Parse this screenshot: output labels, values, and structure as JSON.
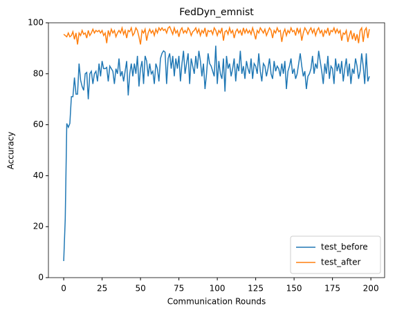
{
  "chart_data": {
    "type": "line",
    "title": "FedDyn_emnist",
    "xlabel": "Communication Rounds",
    "ylabel": "Accuracy",
    "x": [
      0,
      1,
      2,
      3,
      4,
      5,
      6,
      7,
      8,
      9,
      10,
      11,
      12,
      13,
      14,
      15,
      16,
      17,
      18,
      19,
      20,
      21,
      22,
      23,
      24,
      25,
      26,
      27,
      28,
      29,
      30,
      31,
      32,
      33,
      34,
      35,
      36,
      37,
      38,
      39,
      40,
      41,
      42,
      43,
      44,
      45,
      46,
      47,
      48,
      49,
      50,
      51,
      52,
      53,
      54,
      55,
      56,
      57,
      58,
      59,
      60,
      61,
      62,
      63,
      64,
      65,
      66,
      67,
      68,
      69,
      70,
      71,
      72,
      73,
      74,
      75,
      76,
      77,
      78,
      79,
      80,
      81,
      82,
      83,
      84,
      85,
      86,
      87,
      88,
      89,
      90,
      91,
      92,
      93,
      94,
      95,
      96,
      97,
      98,
      99,
      100,
      101,
      102,
      103,
      104,
      105,
      106,
      107,
      108,
      109,
      110,
      111,
      112,
      113,
      114,
      115,
      116,
      117,
      118,
      119,
      120,
      121,
      122,
      123,
      124,
      125,
      126,
      127,
      128,
      129,
      130,
      131,
      132,
      133,
      134,
      135,
      136,
      137,
      138,
      139,
      140,
      141,
      142,
      143,
      144,
      145,
      146,
      147,
      148,
      149,
      150,
      151,
      152,
      153,
      154,
      155,
      156,
      157,
      158,
      159,
      160,
      161,
      162,
      163,
      164,
      165,
      166,
      167,
      168,
      169,
      170,
      171,
      172,
      173,
      174,
      175,
      176,
      177,
      178,
      179,
      180,
      181,
      182,
      183,
      184,
      185,
      186,
      187,
      188,
      189,
      190,
      191,
      192,
      193,
      194,
      195,
      196,
      197,
      198,
      199
    ],
    "series": [
      {
        "name": "test_before",
        "color": "#1f77b4",
        "values": [
          6.5,
          23,
          60.5,
          59,
          60.5,
          71,
          71,
          78.5,
          72,
          72,
          84,
          77.5,
          75,
          73.5,
          80,
          80.5,
          70,
          80,
          81,
          76,
          80,
          81,
          77,
          84,
          79,
          85,
          82,
          82,
          82.5,
          77,
          83,
          82,
          81,
          76,
          82,
          80,
          86,
          79,
          81,
          77,
          81,
          85,
          71.5,
          80,
          84,
          79,
          84,
          80,
          87,
          75,
          82,
          85,
          76,
          87,
          85,
          79,
          84,
          80,
          81,
          76,
          84,
          82,
          77,
          86,
          88,
          89,
          88.5,
          76,
          86,
          88,
          82,
          87,
          79,
          86,
          82,
          87,
          77,
          84,
          89,
          80,
          84,
          88,
          76,
          86,
          83,
          80,
          87,
          82,
          89,
          85,
          79,
          84,
          74,
          80,
          88,
          84,
          83,
          81,
          79,
          91,
          76,
          85,
          80,
          78,
          86,
          73,
          87,
          82,
          84,
          79,
          82,
          86,
          77,
          84,
          81,
          89,
          80,
          83,
          78,
          85,
          82,
          80,
          86,
          78,
          84,
          83,
          80,
          88,
          81,
          77,
          84,
          83,
          79,
          82,
          86,
          80,
          78,
          85,
          81,
          83,
          82,
          79,
          84,
          80,
          85,
          74,
          81,
          83,
          86,
          80,
          82,
          78,
          80,
          84,
          88,
          83,
          79,
          81,
          74,
          79,
          80,
          82,
          87,
          80,
          84,
          82,
          89,
          85,
          81,
          76,
          84,
          80,
          87,
          78,
          83,
          82,
          76,
          86,
          81,
          84,
          80,
          85,
          77,
          82,
          86,
          79,
          84,
          76,
          82,
          80,
          86,
          83,
          78,
          81,
          88,
          83,
          76,
          88,
          77,
          79
        ]
      },
      {
        "name": "test_after",
        "color": "#ff7f0e",
        "values": [
          95.5,
          95,
          94.5,
          96,
          94.5,
          95,
          96.5,
          93.5,
          96,
          91.5,
          96,
          95,
          97,
          95.5,
          96,
          94,
          97,
          95,
          96,
          97.5,
          96,
          97,
          96.5,
          97,
          96,
          97,
          95,
          96,
          92,
          97,
          95,
          97.5,
          96,
          97,
          94.5,
          96,
          97,
          96,
          98,
          95.5,
          97,
          94,
          97,
          96.5,
          98,
          95,
          96,
          98,
          97,
          94.5,
          91.5,
          97,
          96,
          97.5,
          93,
          96,
          97.5,
          96,
          97,
          95,
          97.5,
          96,
          98,
          97,
          98,
          97,
          97.5,
          96,
          98,
          98.5,
          97,
          95.5,
          98,
          96,
          97,
          94.5,
          97,
          98,
          96,
          97,
          96,
          98,
          97,
          95,
          96.5,
          97,
          98,
          96,
          97.5,
          95,
          97,
          96,
          98,
          94.5,
          97,
          96.5,
          97,
          95.5,
          98,
          97,
          95,
          97,
          96,
          98,
          93,
          96.5,
          97,
          95.5,
          98,
          96,
          97,
          94,
          96.5,
          97.5,
          96,
          97,
          95,
          98,
          96,
          97.5,
          96,
          97,
          95.5,
          98,
          96,
          93.5,
          97,
          96,
          98,
          97,
          96,
          97.5,
          95,
          96.5,
          98,
          97,
          94,
          97,
          96,
          98,
          96.5,
          97,
          92.5,
          96,
          97.5,
          95,
          97,
          96,
          98,
          96.5,
          97,
          95,
          98,
          96,
          97.5,
          93,
          96,
          98,
          97,
          95.5,
          97,
          98,
          96,
          97.5,
          95,
          97,
          98,
          96,
          97,
          94.5,
          97,
          96,
          98,
          95,
          97,
          96.5,
          98,
          96,
          97.5,
          96,
          97,
          93,
          96,
          95.5,
          97,
          92.5,
          95,
          97,
          93.5,
          96,
          93,
          95.5,
          92,
          97,
          98,
          92.5,
          97,
          98,
          94,
          97.5
        ]
      }
    ],
    "xlim": [
      -9.95,
      208.95
    ],
    "xticks": [
      0,
      25,
      50,
      75,
      100,
      125,
      150,
      175,
      200
    ],
    "ylim": [
      0,
      100
    ],
    "yticks": [
      0,
      20,
      40,
      60,
      80,
      100
    ],
    "grid": false,
    "legend": "lower right"
  }
}
